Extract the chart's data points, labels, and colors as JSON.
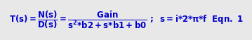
{
  "background_color": "#e8e8e8",
  "text_color": "#0000cc",
  "fontsize": 8.5,
  "figwidth": 3.59,
  "figheight": 0.58,
  "dpi": 100
}
